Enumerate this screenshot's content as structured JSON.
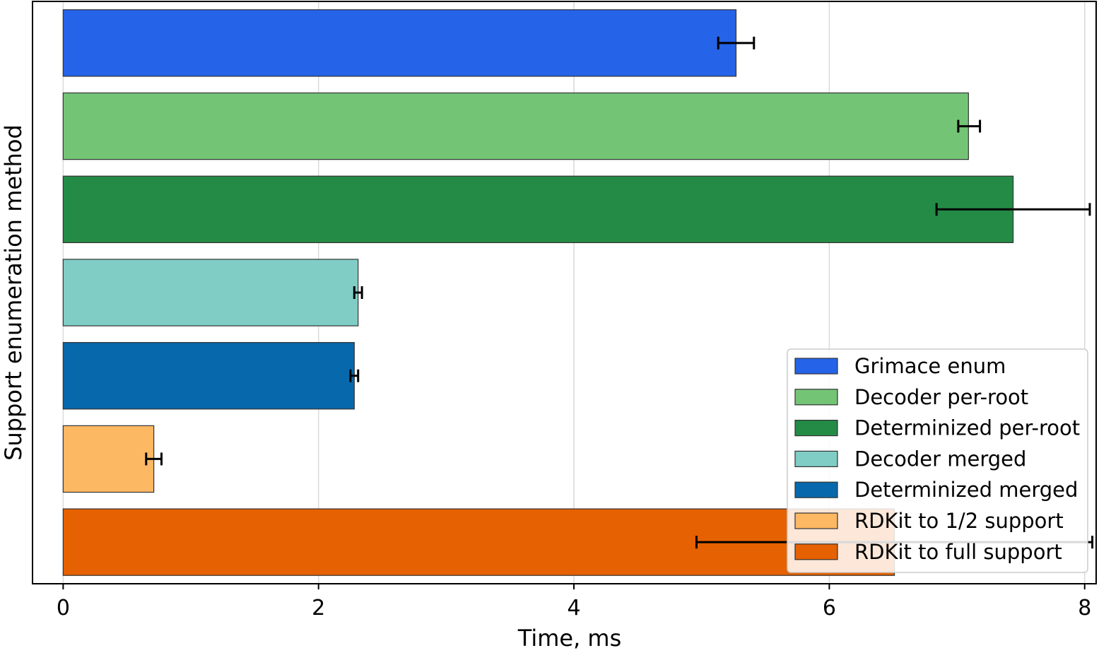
{
  "chart_data": {
    "type": "bar",
    "orientation": "horizontal",
    "xlabel": "Time, ms",
    "ylabel": "Support enumeration method",
    "xlim": [
      -0.24,
      8.09
    ],
    "xticks": [
      0,
      2,
      4,
      6,
      8
    ],
    "grid": "x",
    "legend_position": "lower-right",
    "series": [
      {
        "name": "Grimace enum",
        "value": 5.27,
        "err_low": 5.13,
        "err_high": 5.41,
        "color": "#2563e8"
      },
      {
        "name": "Decoder per-root",
        "value": 7.09,
        "err_low": 7.01,
        "err_high": 7.18,
        "color": "#74c476"
      },
      {
        "name": "Determinized per-root",
        "value": 7.44,
        "err_low": 6.84,
        "err_high": 8.04,
        "color": "#238b45"
      },
      {
        "name": "Decoder merged",
        "value": 2.31,
        "err_low": 2.28,
        "err_high": 2.34,
        "color": "#7fcdc5"
      },
      {
        "name": "Determinized merged",
        "value": 2.28,
        "err_low": 2.25,
        "err_high": 2.31,
        "color": "#0868ac"
      },
      {
        "name": "RDKit to 1/2 support",
        "value": 0.71,
        "err_low": 0.65,
        "err_high": 0.77,
        "color": "#fdb863"
      },
      {
        "name": "RDKit to full support",
        "value": 6.51,
        "err_low": 4.96,
        "err_high": 8.06,
        "color": "#e66101"
      }
    ]
  }
}
